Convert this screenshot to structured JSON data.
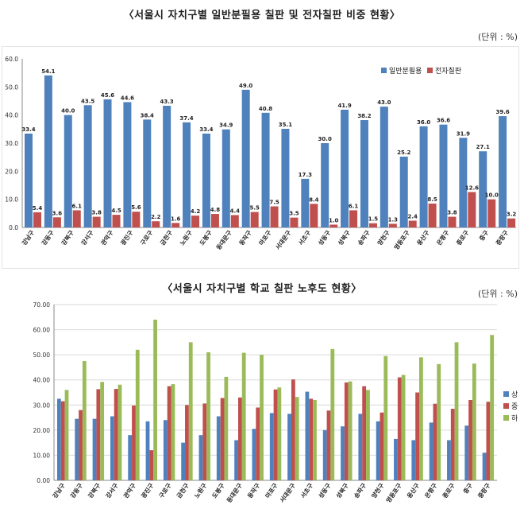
{
  "charts": [
    {
      "title": "〈서울시 자치구별 일반분필용 칠판 및 전자칠판 비중 현황〉",
      "unit": "(단위 : %)",
      "legend": [
        "일반분필용",
        "전자칠판"
      ]
    },
    {
      "title": "〈서울시 자치구별 학교 칠판 노후도 현황〉",
      "unit": "(단위 : %)",
      "legend": [
        "상",
        "중",
        "하"
      ]
    }
  ],
  "colors": {
    "blue1": "#4F81BD",
    "red1": "#C0504D",
    "blue2": "#4F81BD",
    "red2": "#C0504D",
    "green2": "#9BBB59"
  },
  "chart_data": [
    {
      "type": "bar",
      "title": "〈서울시 자치구별 일반분필용 칠판 및 전자칠판 비중 현황〉",
      "categories": [
        "강남구",
        "강동구",
        "강북구",
        "강서구",
        "관악구",
        "광진구",
        "구로구",
        "금천구",
        "노원구",
        "도봉구",
        "동대문구",
        "동작구",
        "마포구",
        "서대문구",
        "서초구",
        "성동구",
        "성북구",
        "송파구",
        "양천구",
        "영등포구",
        "용산구",
        "은평구",
        "종로구",
        "중구",
        "중랑구"
      ],
      "series": [
        {
          "name": "일반분필용",
          "values": [
            33.4,
            54.1,
            40.0,
            43.5,
            45.6,
            44.6,
            38.4,
            43.3,
            37.4,
            33.4,
            34.9,
            49.0,
            40.8,
            35.1,
            17.3,
            30.0,
            41.9,
            38.2,
            43.0,
            25.2,
            36.0,
            36.6,
            31.9,
            27.1,
            39.6
          ]
        },
        {
          "name": "전자칠판",
          "values": [
            5.4,
            3.6,
            6.1,
            3.8,
            4.5,
            5.6,
            2.2,
            1.6,
            4.2,
            4.8,
            4.4,
            5.5,
            7.5,
            3.5,
            8.4,
            1.0,
            6.1,
            1.5,
            1.3,
            2.4,
            8.5,
            3.8,
            12.6,
            10.0,
            3.2
          ]
        }
      ],
      "ylim": [
        0,
        60
      ],
      "yticks": [
        "0.0",
        "10.0",
        "20.0",
        "30.0",
        "40.0",
        "50.0",
        "60.0"
      ],
      "data_labels": true,
      "legend_position": "top-right",
      "xlabel": "",
      "ylabel": ""
    },
    {
      "type": "bar",
      "title": "〈서울시 자치구별 학교 칠판 노후도 현황〉",
      "categories": [
        "강남구",
        "강동구",
        "강북구",
        "강서구",
        "관악구",
        "광진구",
        "구로구",
        "금천구",
        "노원구",
        "도봉구",
        "동대문구",
        "동작구",
        "마포구",
        "서대문구",
        "서초구",
        "성동구",
        "성북구",
        "송파구",
        "양천구",
        "영등포구",
        "용산구",
        "은평구",
        "종로구",
        "중구",
        "중랑구"
      ],
      "series": [
        {
          "name": "상",
          "values": [
            32.5,
            24.5,
            24.5,
            25.5,
            18.0,
            23.5,
            24.0,
            15.0,
            18.0,
            25.5,
            16.0,
            20.5,
            26.8,
            26.5,
            35.3,
            20.0,
            21.5,
            26.5,
            23.5,
            16.5,
            16.0,
            23.0,
            16.0,
            21.8,
            11.0
          ]
        },
        {
          "name": "중",
          "values": [
            31.5,
            28.0,
            36.3,
            36.4,
            29.8,
            12.0,
            37.5,
            30.0,
            30.6,
            32.8,
            33.0,
            29.0,
            36.2,
            40.2,
            32.5,
            27.8,
            39.0,
            37.5,
            27.0,
            41.0,
            35.0,
            30.5,
            28.5,
            32.0,
            31.3
          ]
        },
        {
          "name": "하",
          "values": [
            36.0,
            47.5,
            39.2,
            38.1,
            52.0,
            64.0,
            38.3,
            55.0,
            51.0,
            41.2,
            50.8,
            50.0,
            37.0,
            33.2,
            32.0,
            52.3,
            39.4,
            36.0,
            49.5,
            42.0,
            49.0,
            46.3,
            55.0,
            46.5,
            57.9
          ]
        }
      ],
      "ylim": [
        0,
        70
      ],
      "yticks": [
        "0.00",
        "10.00",
        "20.00",
        "30.00",
        "40.00",
        "50.00",
        "60.00",
        "70.00"
      ],
      "data_labels": false,
      "legend_position": "right",
      "xlabel": "",
      "ylabel": ""
    }
  ]
}
